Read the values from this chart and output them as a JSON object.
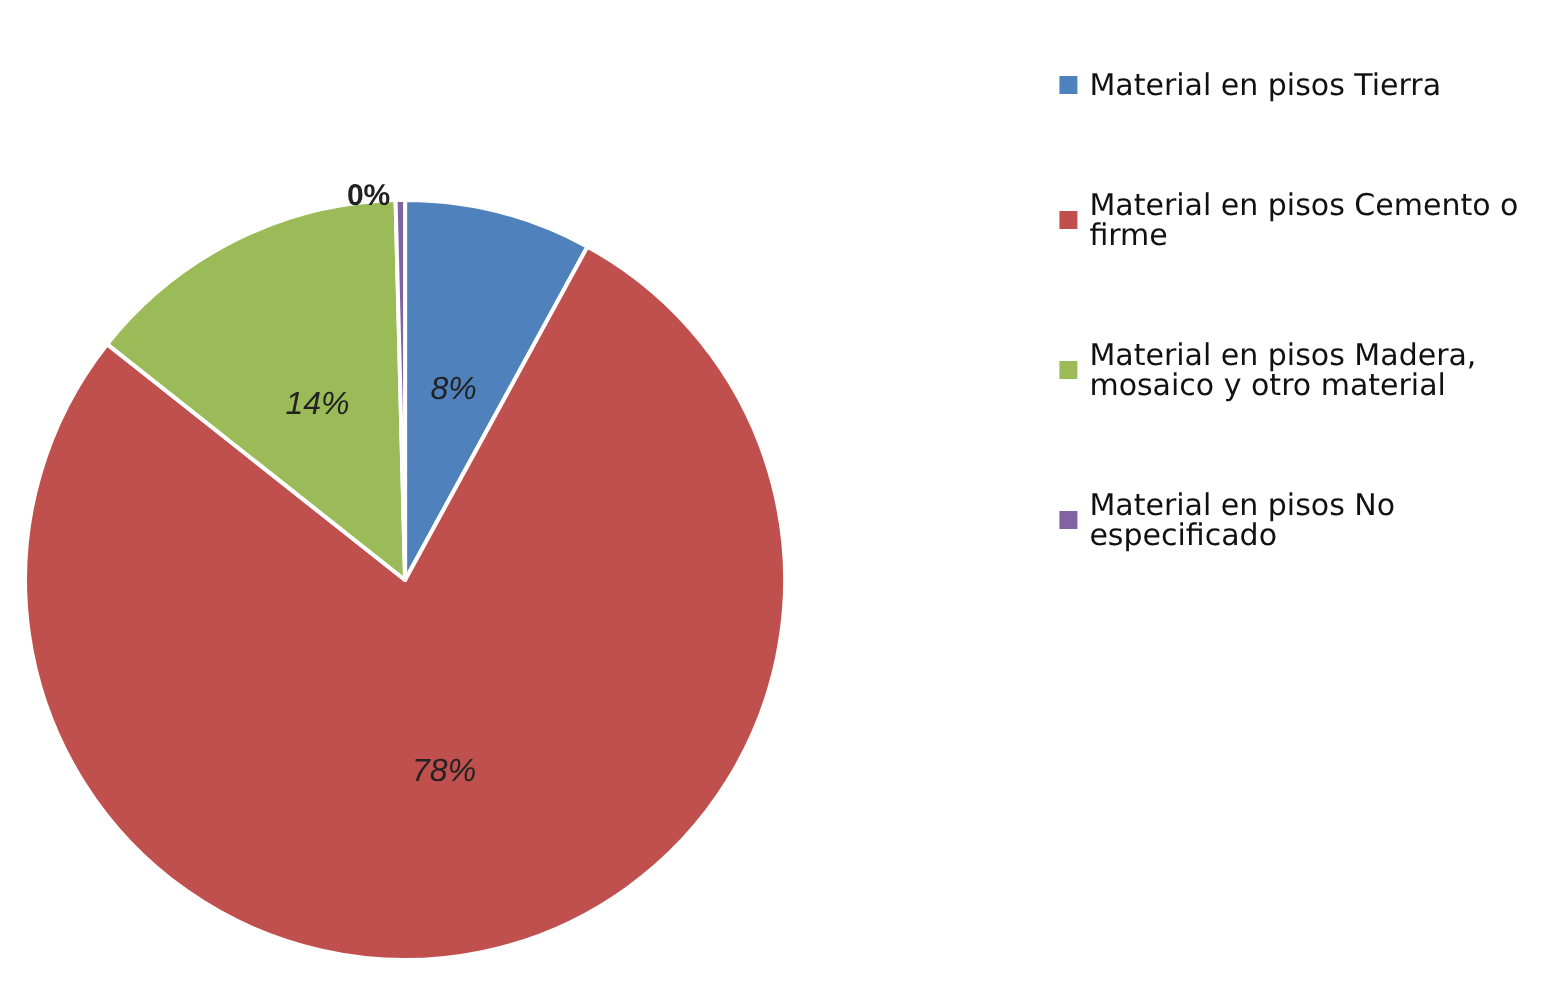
{
  "chart_data": {
    "type": "pie",
    "categories": [
      "Material en pisos Tierra",
      "Material en pisos Cemento o firme",
      "Material en pisos Madera, mosaico y otro material",
      "Material en pisos No especificado"
    ],
    "values": [
      8,
      78,
      14,
      0.4
    ],
    "colors": [
      "#4f81bd",
      "#c0504d",
      "#9bbb59",
      "#8064a2"
    ],
    "value_labels": [
      "8%",
      "78%",
      "14%",
      "0%"
    ],
    "legend": "right"
  }
}
